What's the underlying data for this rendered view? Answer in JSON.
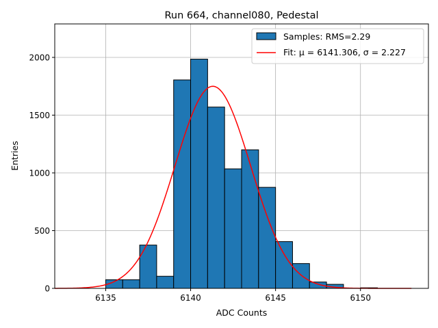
{
  "chart_data": {
    "type": "bar",
    "title": "Run 664, channel080, Pedestal",
    "xlabel": "ADC Counts",
    "ylabel": "Entries",
    "xlim": [
      6132,
      6154
    ],
    "ylim": [
      0,
      2290
    ],
    "xticks": [
      6135,
      6140,
      6145,
      6150
    ],
    "yticks": [
      0,
      500,
      1000,
      1500,
      2000
    ],
    "grid": true,
    "legend_position": "top-right",
    "bin_width": 1,
    "bins": [
      {
        "x": 6135,
        "value": 75
      },
      {
        "x": 6136,
        "value": 75
      },
      {
        "x": 6137,
        "value": 375
      },
      {
        "x": 6138,
        "value": 105
      },
      {
        "x": 6139,
        "value": 1805
      },
      {
        "x": 6140,
        "value": 1985
      },
      {
        "x": 6141,
        "value": 1570
      },
      {
        "x": 6142,
        "value": 1035
      },
      {
        "x": 6143,
        "value": 1200
      },
      {
        "x": 6144,
        "value": 875
      },
      {
        "x": 6145,
        "value": 405
      },
      {
        "x": 6146,
        "value": 215
      },
      {
        "x": 6147,
        "value": 55
      },
      {
        "x": 6148,
        "value": 35
      },
      {
        "x": 6150,
        "value": 5
      }
    ],
    "fit": {
      "mu": 6141.306,
      "sigma": 2.227,
      "amplitude": 1750,
      "x_range": [
        6132,
        6153
      ]
    },
    "series": [
      {
        "name": "Samples: RMS=2.29",
        "kind": "histogram",
        "color": "#1f77b4"
      },
      {
        "name": "Fit: μ = 6141.306, σ = 2.227",
        "kind": "line",
        "color": "#ff0000"
      }
    ]
  }
}
